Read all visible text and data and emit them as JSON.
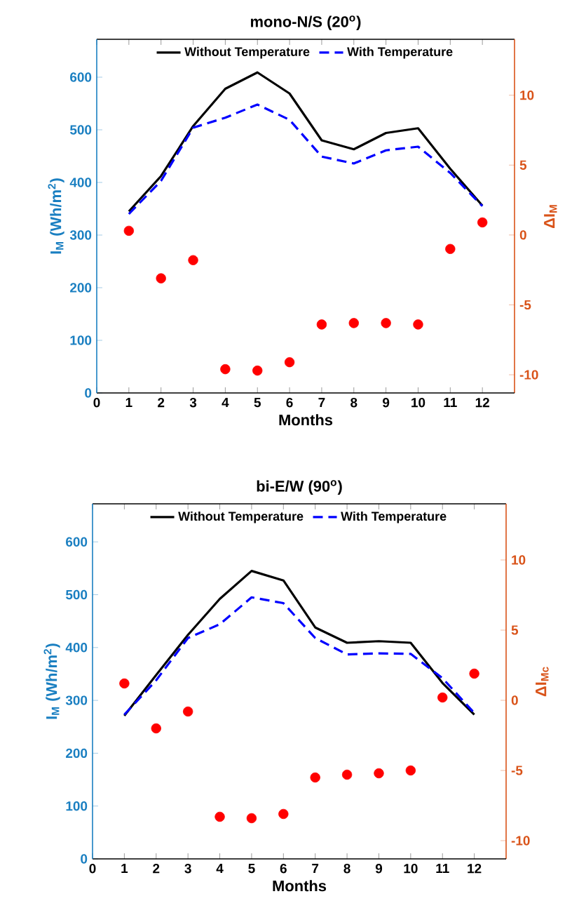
{
  "chart_data": [
    {
      "type": "line",
      "title": "mono-N/S (20$^{o}$)",
      "xlabel": "Months",
      "ylabel": "I$_{M}$ (Wh/m$^{2}$)",
      "y2label": "ΔI$_{M}$",
      "x": [
        1,
        2,
        3,
        4,
        5,
        6,
        7,
        8,
        9,
        10,
        11,
        12
      ],
      "xlim": [
        0,
        13
      ],
      "xticks": [
        0,
        1,
        2,
        3,
        4,
        5,
        6,
        7,
        8,
        9,
        10,
        11,
        12
      ],
      "ylim": [
        0,
        672
      ],
      "yticks": [
        0,
        100,
        200,
        300,
        400,
        500,
        600
      ],
      "y2lim": [
        -11.3,
        14
      ],
      "y2ticks": [
        -10,
        -5,
        0,
        5,
        10
      ],
      "legend": "top",
      "grid": false,
      "series": [
        {
          "name": "Without Temperature",
          "line_style": "solid",
          "color": "#000000",
          "values": [
            345,
            412,
            507,
            578,
            609,
            569,
            480,
            463,
            494,
            503,
            426,
            356
          ]
        },
        {
          "name": "With Temperature",
          "line_style": "dashed",
          "color": "#0000ff",
          "values": [
            340,
            403,
            504,
            523,
            548,
            519,
            449,
            436,
            461,
            468,
            418,
            355
          ]
        },
        {
          "type": "scatter",
          "axis": "y2",
          "marker": "circle",
          "color": "#ff0000",
          "values": [
            0.3,
            -3.1,
            -1.8,
            -9.6,
            -9.7,
            -9.1,
            -6.4,
            -6.3,
            -6.3,
            -6.4,
            -1.0,
            0.9
          ]
        }
      ]
    },
    {
      "type": "line",
      "title": "bi-E/W (90$^{o}$)",
      "xlabel": "Months",
      "ylabel": "I$_{M}$ (Wh/m$^{2}$)",
      "y2label": "ΔI$_{Mc}$",
      "x": [
        1,
        2,
        3,
        4,
        5,
        6,
        7,
        8,
        9,
        10,
        11,
        12
      ],
      "xlim": [
        0,
        13
      ],
      "xticks": [
        0,
        1,
        2,
        3,
        4,
        5,
        6,
        7,
        8,
        9,
        10,
        11,
        12
      ],
      "ylim": [
        0,
        672
      ],
      "yticks": [
        0,
        100,
        200,
        300,
        400,
        500,
        600
      ],
      "y2lim": [
        -11.3,
        14
      ],
      "y2ticks": [
        -10,
        -5,
        0,
        5,
        10
      ],
      "legend": "top",
      "grid": false,
      "series": [
        {
          "name": "Without Temperature",
          "line_style": "solid",
          "color": "#000000",
          "values": [
            271,
            348,
            424,
            492,
            545,
            527,
            438,
            409,
            412,
            409,
            333,
            273
          ]
        },
        {
          "name": "With Temperature",
          "line_style": "dashed",
          "color": "#0000ff",
          "values": [
            273,
            338,
            418,
            444,
            495,
            484,
            418,
            387,
            389,
            388,
            342,
            276
          ]
        },
        {
          "type": "scatter",
          "axis": "y2",
          "marker": "circle",
          "color": "#ff0000",
          "values": [
            1.2,
            -2.0,
            -0.8,
            -8.3,
            -8.4,
            -8.1,
            -5.5,
            -5.3,
            -5.2,
            -5.0,
            0.2,
            1.9
          ]
        }
      ]
    }
  ]
}
